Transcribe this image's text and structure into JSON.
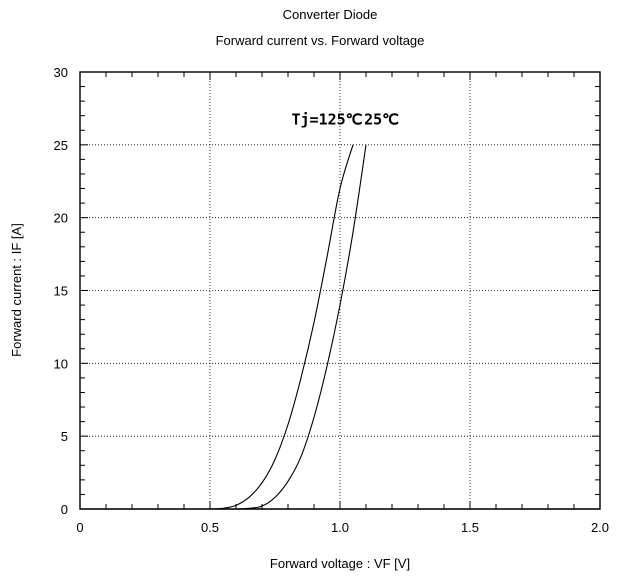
{
  "chart_data": {
    "type": "line",
    "title": "Converter Diode",
    "subtitle": "Forward current vs.  Forward voltage",
    "xlabel": "Forward voltage  :  VF [V]",
    "ylabel": "Forward current  : IF  [A]",
    "xlim": [
      0,
      2.0
    ],
    "ylim": [
      0,
      30
    ],
    "x_ticks": [
      "0",
      "0.5",
      "1.0",
      "1.5",
      "2.0"
    ],
    "y_ticks": [
      "0",
      "5",
      "10",
      "15",
      "20",
      "25",
      "30"
    ],
    "grid": true,
    "annotations": [
      {
        "text": "Tj=125℃",
        "x": 0.95,
        "y": 26.4
      },
      {
        "text": "25℃",
        "x": 1.16,
        "y": 26.4
      }
    ],
    "series": [
      {
        "name": "Tj=125℃",
        "x": [
          0.5,
          0.55,
          0.6,
          0.65,
          0.7,
          0.75,
          0.8,
          0.85,
          0.9,
          0.95,
          1.0,
          1.05
        ],
        "y": [
          0.0,
          0.05,
          0.25,
          0.8,
          1.8,
          3.4,
          5.8,
          9.0,
          12.8,
          17.3,
          22.0,
          25.0
        ]
      },
      {
        "name": "25℃",
        "x": [
          0.6,
          0.65,
          0.7,
          0.75,
          0.8,
          0.85,
          0.9,
          0.95,
          1.0,
          1.05,
          1.1
        ],
        "y": [
          0.0,
          0.05,
          0.2,
          0.8,
          1.9,
          3.6,
          6.3,
          9.8,
          14.0,
          19.0,
          25.0
        ]
      }
    ]
  }
}
